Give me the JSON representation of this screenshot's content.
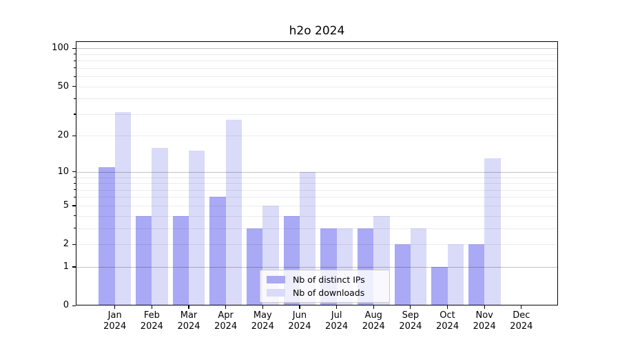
{
  "title": "h2o 2024",
  "chart_data": {
    "type": "bar",
    "categories": [
      "Jan 2024",
      "Feb 2024",
      "Mar 2024",
      "Apr 2024",
      "May 2024",
      "Jun 2024",
      "Jul 2024",
      "Aug 2024",
      "Sep 2024",
      "Oct 2024",
      "Nov 2024",
      "Dec 2024"
    ],
    "series": [
      {
        "name": "Nb of distinct IPs",
        "color": "#a9a9f5",
        "values": [
          11,
          4,
          4,
          6,
          3,
          4,
          3,
          3,
          2,
          1,
          2,
          0
        ]
      },
      {
        "name": "Nb of downloads",
        "color": "#dadaf9",
        "values": [
          31,
          16,
          15,
          27,
          5,
          10,
          3,
          4,
          3,
          2,
          13,
          0
        ]
      }
    ],
    "title": "h2o 2024",
    "xlabel": "",
    "ylabel": "",
    "y_scale": "log10(1+y)",
    "y_ticks": [
      0,
      1,
      2,
      5,
      10,
      20,
      50,
      100
    ],
    "y_major_gridlines": [
      1,
      10,
      100
    ],
    "y_minor_gridlines": [
      2,
      3,
      4,
      5,
      6,
      7,
      8,
      9,
      20,
      30,
      40,
      50,
      60,
      70,
      80,
      90
    ],
    "ylim": [
      0,
      113
    ],
    "grid": "on",
    "legend_position": "lower-center"
  },
  "legend": {
    "entries": [
      "Nb of distinct IPs",
      "Nb of downloads"
    ]
  }
}
